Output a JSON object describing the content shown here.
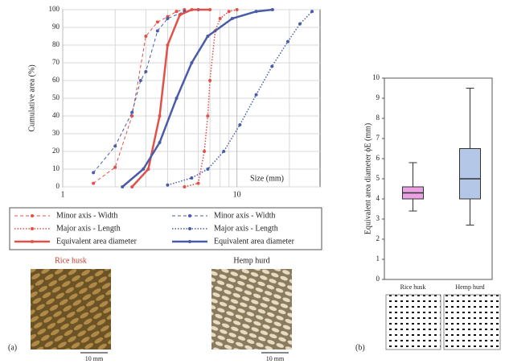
{
  "chart_data": [
    {
      "type": "line",
      "ylabel": "Cumulative area (%)",
      "xlabel": "Size (mm)",
      "log_x": true,
      "xlim": [
        1,
        30
      ],
      "xticks": [
        1,
        10
      ],
      "x_minor_grid": [
        2,
        3,
        4,
        5,
        6,
        7,
        8,
        9,
        20
      ],
      "ylim": [
        0,
        100
      ],
      "yticks": [
        0,
        10,
        20,
        30,
        40,
        50,
        60,
        70,
        80,
        90,
        100
      ],
      "grid": true,
      "series": [
        {
          "name": "Minor axis - Width",
          "color": "#e2504a",
          "dash": "dashed",
          "width": 1,
          "x": [
            1.5,
            2,
            2.5,
            3,
            3.5,
            4,
            4.5,
            5
          ],
          "values": [
            2,
            11,
            40,
            85,
            93,
            96,
            99,
            100
          ]
        },
        {
          "name": "Minor axis - Width",
          "color": "#4a5ca8",
          "dash": "dashed",
          "width": 1,
          "x": [
            1.5,
            2,
            2.5,
            2.8,
            3,
            3.5,
            4,
            5,
            6
          ],
          "values": [
            8,
            23,
            42,
            60,
            65,
            88,
            95,
            99,
            100
          ]
        },
        {
          "name": "Major axis - Length",
          "color": "#e2504a",
          "dash": "dotted",
          "width": 1.5,
          "x": [
            5,
            6,
            6.5,
            6.8,
            7,
            7.5,
            8,
            9,
            10
          ],
          "values": [
            0,
            2,
            20,
            40,
            60,
            88,
            95,
            99,
            100
          ]
        },
        {
          "name": "Major axis - Length",
          "color": "#4a5ca8",
          "dash": "dotted",
          "width": 1.5,
          "x": [
            4,
            5.5,
            6.8,
            8.4,
            10.4,
            12.9,
            15.9,
            19.6,
            23,
            27
          ],
          "values": [
            1,
            5,
            10,
            20,
            35,
            52,
            68,
            82,
            92,
            99
          ]
        },
        {
          "name": "Equivalent area diameter",
          "color": "#e2504a",
          "dash": "solid",
          "width": 2.5,
          "x": [
            2.5,
            3.1,
            3.6,
            4,
            4.7,
            5.5,
            7
          ],
          "values": [
            0,
            10,
            40,
            80,
            97,
            100,
            100
          ]
        },
        {
          "name": "Equivalent area diameter",
          "color": "#4a5ca8",
          "dash": "solid",
          "width": 2.5,
          "x": [
            2.2,
            2.9,
            3.6,
            4.5,
            5.5,
            6.8,
            9.4,
            12.9,
            16
          ],
          "values": [
            0,
            10,
            25,
            50,
            70,
            85,
            95,
            99,
            100
          ]
        }
      ]
    },
    {
      "type": "box",
      "ylabel": "Equivalent area diameter ϕE (mm)",
      "categories": [
        "Rice husk",
        "Hemp hurd"
      ],
      "colors": [
        "#e9a3e3",
        "#b4c7e7"
      ],
      "min": [
        3.4,
        2.7
      ],
      "q1": [
        4.0,
        4.0
      ],
      "median": [
        4.3,
        5.0
      ],
      "q3": [
        4.6,
        6.5
      ],
      "max": [
        5.8,
        9.5
      ],
      "ylim": [
        0,
        10
      ],
      "yticks": [
        0,
        1,
        2,
        3,
        4,
        5,
        6,
        7,
        8,
        9,
        10
      ]
    }
  ],
  "figure": {
    "panel_a": "(a)",
    "panel_b": "(b)",
    "photos": [
      {
        "caption": "Rice husk",
        "scale": "10 mm"
      },
      {
        "caption": "Hemp hurd",
        "scale": "10 mm"
      }
    ]
  }
}
